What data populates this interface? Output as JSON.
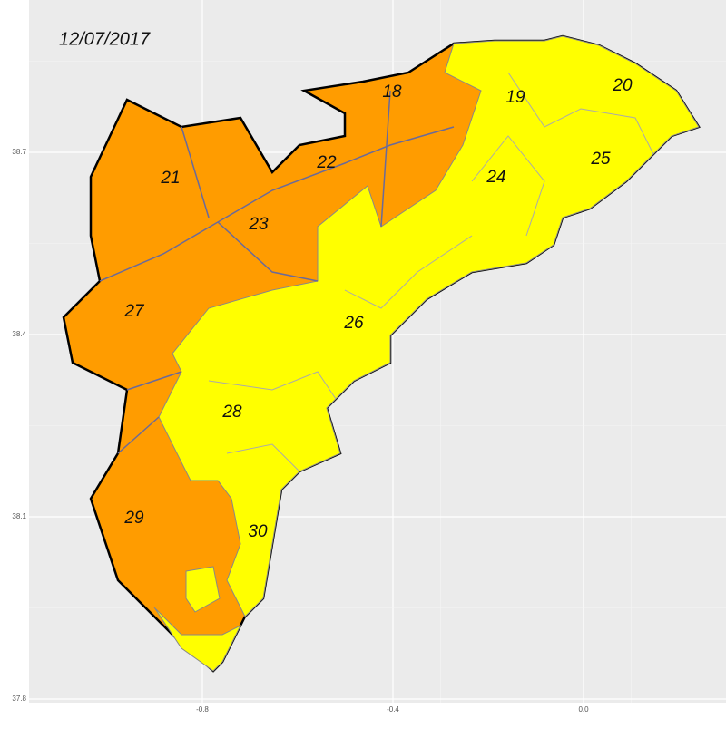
{
  "date": "12/07/2017",
  "regions": [
    "18",
    "19",
    "20",
    "21",
    "22",
    "23",
    "24",
    "25",
    "26",
    "27",
    "28",
    "29",
    "30"
  ],
  "x_ticks": [
    {
      "value": -0.8,
      "label": "-0.8"
    },
    {
      "value": -0.4,
      "label": "-0.4"
    },
    {
      "value": 0,
      "label": "0.0"
    }
  ],
  "y_ticks": [
    38.7,
    38.4,
    38.1,
    37.8
  ]
}
